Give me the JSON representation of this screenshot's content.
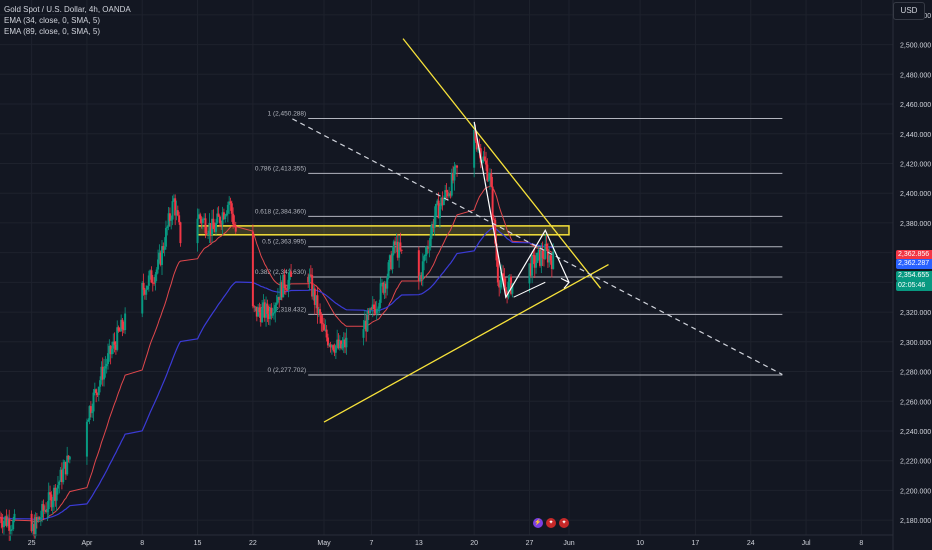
{
  "header": {
    "series_title": "Gold Spot / U.S. Dollar, 4h, OANDA",
    "ema1": "EMA (34, close, 0, SMA, 5)",
    "ema2": "EMA (89, close, 0, SMA, 5)",
    "currency": "USD"
  },
  "price_tags": [
    {
      "label": "2,362.856",
      "color": "#f23645"
    },
    {
      "label": "2,362.287",
      "color": "#2962ff"
    },
    {
      "label": "2,354.655",
      "color": "#089981"
    },
    {
      "label": "02:05:46",
      "color": "#089981"
    }
  ],
  "colors": {
    "up": "#089981",
    "down": "#f23645",
    "ema34": "#e0474c",
    "ema89": "#3b3bd6",
    "trendline": "#f7e23a",
    "fib": "#b2b5be",
    "background": "#131722"
  },
  "chart_data": {
    "type": "candlestick",
    "ylim": [
      2170,
      2530
    ],
    "y_ticks": [
      2180,
      2200,
      2220,
      2240,
      2260,
      2280,
      2300,
      2320,
      2340,
      2360,
      2380,
      2400,
      2420,
      2440,
      2460,
      2480,
      2500,
      2520
    ],
    "y_tick_labels": [
      "2,180.000",
      "2,200.000",
      "2,220.000",
      "2,240.000",
      "2,260.000",
      "2,280.000",
      "2,300.000",
      "2,320.000",
      "2,340.000",
      "2,360.000",
      "2,380.000",
      "2,400.000",
      "2,420.000",
      "2,440.000",
      "2,460.000",
      "2,480.000",
      "2,500.000",
      "2,520.000"
    ],
    "x_tick_labels": [
      "25",
      "Apr",
      "8",
      "15",
      "22",
      "May",
      "7",
      "13",
      "20",
      "27",
      "Jun",
      "10",
      "17",
      "24",
      "Jul",
      "8"
    ],
    "x_tick_dates": [
      "2024-03-25",
      "2024-04-01",
      "2024-04-08",
      "2024-04-15",
      "2024-04-22",
      "2024-05-01",
      "2024-05-07",
      "2024-05-13",
      "2024-05-20",
      "2024-05-27",
      "2024-06-01",
      "2024-06-10",
      "2024-06-17",
      "2024-06-24",
      "2024-07-01",
      "2024-07-08"
    ],
    "x_range": [
      "2024-03-21",
      "2024-07-12"
    ],
    "price_anchors": [
      [
        "2024-03-21",
        2182
      ],
      [
        "2024-03-25",
        2172
      ],
      [
        "2024-03-28",
        2200
      ],
      [
        "2024-04-01",
        2250
      ],
      [
        "2024-04-03",
        2280
      ],
      [
        "2024-04-05",
        2305
      ],
      [
        "2024-04-08",
        2335
      ],
      [
        "2024-04-10",
        2350
      ],
      [
        "2024-04-12",
        2395
      ],
      [
        "2024-04-13",
        2365
      ],
      [
        "2024-04-15",
        2385
      ],
      [
        "2024-04-17",
        2375
      ],
      [
        "2024-04-19",
        2395
      ],
      [
        "2024-04-22",
        2320
      ],
      [
        "2024-04-24",
        2320
      ],
      [
        "2024-04-26",
        2340
      ],
      [
        "2024-04-29",
        2345
      ],
      [
        "2024-05-01",
        2305
      ],
      [
        "2024-05-02",
        2300
      ],
      [
        "2024-05-03",
        2295
      ],
      [
        "2024-05-06",
        2310
      ],
      [
        "2024-05-07",
        2318
      ],
      [
        "2024-05-09",
        2345
      ],
      [
        "2024-05-10",
        2365
      ],
      [
        "2024-05-13",
        2340
      ],
      [
        "2024-05-15",
        2385
      ],
      [
        "2024-05-17",
        2405
      ],
      [
        "2024-05-20",
        2440
      ],
      [
        "2024-05-21",
        2425
      ],
      [
        "2024-05-22",
        2410
      ],
      [
        "2024-05-23",
        2345
      ],
      [
        "2024-05-24",
        2335
      ],
      [
        "2024-05-27",
        2350
      ],
      [
        "2024-05-29",
        2360
      ],
      [
        "2024-05-30",
        2355
      ]
    ],
    "fib_levels": [
      {
        "label": "1 (2,450.288)",
        "value": 2450.288
      },
      {
        "label": "0.786 (2,413.355)",
        "value": 2413.355
      },
      {
        "label": "0.618 (2,384.360)",
        "value": 2384.36
      },
      {
        "label": "0.5 (2,363.995)",
        "value": 2363.995
      },
      {
        "label": "0.382 (2,343.630)",
        "value": 2343.63
      },
      {
        "label": "0.236 (2,318.432)",
        "value": 2318.432
      },
      {
        "label": "0 (2,277.702)",
        "value": 2277.702
      }
    ],
    "resistance_zone": {
      "from": "2024-04-15",
      "to": "2024-06-01",
      "low": 2372,
      "high": 2378
    },
    "trendlines": [
      {
        "from": [
          "2024-05-01",
          2246
        ],
        "to": [
          "2024-06-06",
          2352
        ]
      },
      {
        "from": [
          "2024-05-11",
          2504
        ],
        "to": [
          "2024-06-05",
          2336
        ]
      },
      {
        "from": [
          "2024-04-27",
          2450
        ],
        "to": [
          "2024-06-28",
          2278
        ]
      }
    ]
  }
}
